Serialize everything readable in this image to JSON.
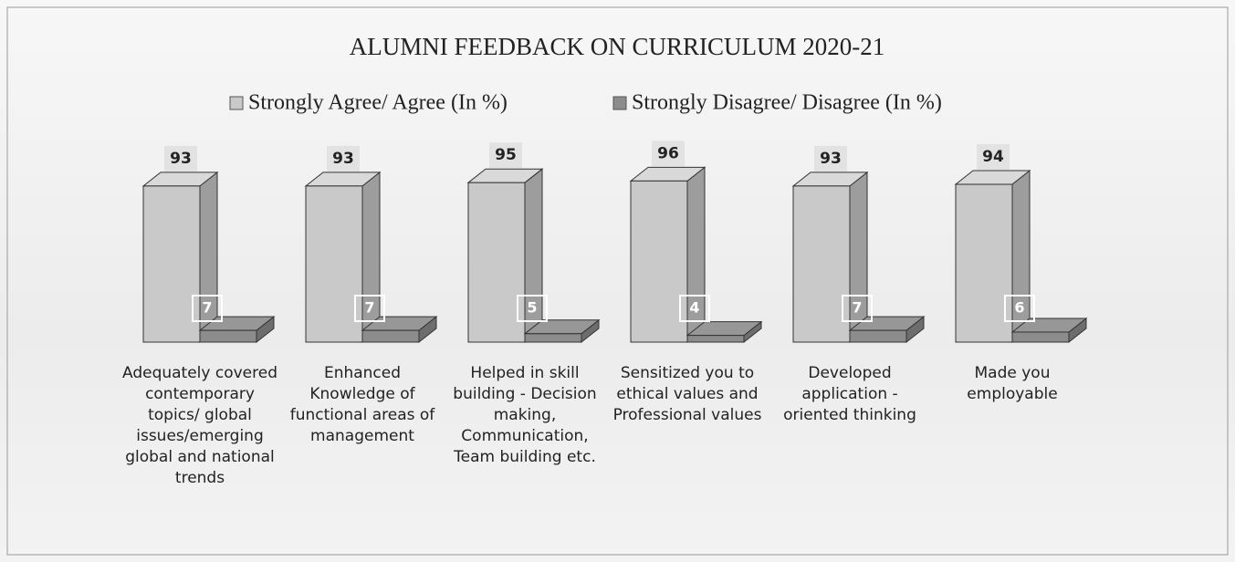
{
  "chart_data": {
    "type": "bar3d",
    "title": "ALUMNI FEEDBACK ON CURRICULUM 2020-21",
    "categories": [
      "Adequately covered contemporary topics/ global issues/emerging global and national trends",
      "Enhanced Knowledge of functional areas of management",
      "Helped in skill building - Decision making, Communication, Team building etc.",
      "Sensitized you to ethical values and Professional values",
      "Developed application - oriented thinking",
      "Made you employable"
    ],
    "series": [
      {
        "name": "Strongly Agree/ Agree (In %)",
        "color": "#c9c9c9",
        "values": [
          93,
          93,
          95,
          96,
          93,
          94
        ]
      },
      {
        "name": "Strongly Disagree/ Disagree (In %)",
        "color": "#8c8c8c",
        "values": [
          7,
          7,
          5,
          4,
          7,
          6
        ]
      }
    ]
  }
}
